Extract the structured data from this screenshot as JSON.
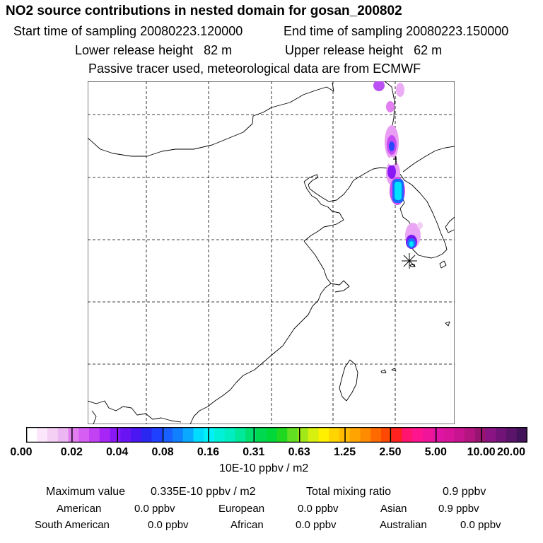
{
  "header": {
    "title": "NO2 source contributions in nested domain for gosan_200802",
    "start_label": "Start time of sampling 20080223.120000",
    "end_label": "End time of sampling 20080223.150000",
    "lower_label": "Lower release height   82 m",
    "upper_label": "Upper release height   62 m",
    "tracer_note": "Passive tracer used, meteorological data are from ECMWF"
  },
  "colorbar": {
    "labels": [
      "0.00",
      "0.02",
      "0.04",
      "0.08",
      "0.16",
      "0.31",
      "0.63",
      "1.25",
      "2.50",
      "5.00",
      "10.00",
      "20.00"
    ],
    "colors": [
      "#ffffff",
      "#fbe6fb",
      "#f5d0f5",
      "#ecb6f2",
      "#e27ef0",
      "#d65ef2",
      "#c241f3",
      "#a826f5",
      "#8a18f6",
      "#6a14f4",
      "#4a16f2",
      "#2a28f0",
      "#2040ff",
      "#1860ff",
      "#1080ff",
      "#0aa8ff",
      "#00dcff",
      "#00f2f8",
      "#00f0d8",
      "#00eec0",
      "#00e89a",
      "#00e070",
      "#00d850",
      "#00d83a",
      "#20d820",
      "#60e020",
      "#a0e818",
      "#d8f010",
      "#fff000",
      "#ffd400",
      "#ffbc00",
      "#ffa400",
      "#ff8c00",
      "#ff6a00",
      "#ff4800",
      "#ff2020",
      "#ff1470",
      "#ff1490",
      "#f0149a",
      "#e014a4",
      "#d8149a",
      "#c81490",
      "#b41480",
      "#981470",
      "#8a1484",
      "#701478",
      "#5a146a",
      "#42125a"
    ],
    "unit": "10E-10 ppbv / m2"
  },
  "summary": {
    "max_label": "Maximum value",
    "max_value": "0.335E-10 ppbv / m2",
    "total_label": "Total mixing ratio",
    "total_value": "0.9 ppbv",
    "regions": [
      {
        "name": "American",
        "value": "0.0 ppbv"
      },
      {
        "name": "European",
        "value": "0.0 ppbv"
      },
      {
        "name": "Asian",
        "value": "0.9 ppbv"
      },
      {
        "name": "South American",
        "value": "0.0 ppbv"
      },
      {
        "name": "African",
        "value": "0.0 ppbv"
      },
      {
        "name": "Australian",
        "value": "0.0 ppbv"
      }
    ]
  }
}
